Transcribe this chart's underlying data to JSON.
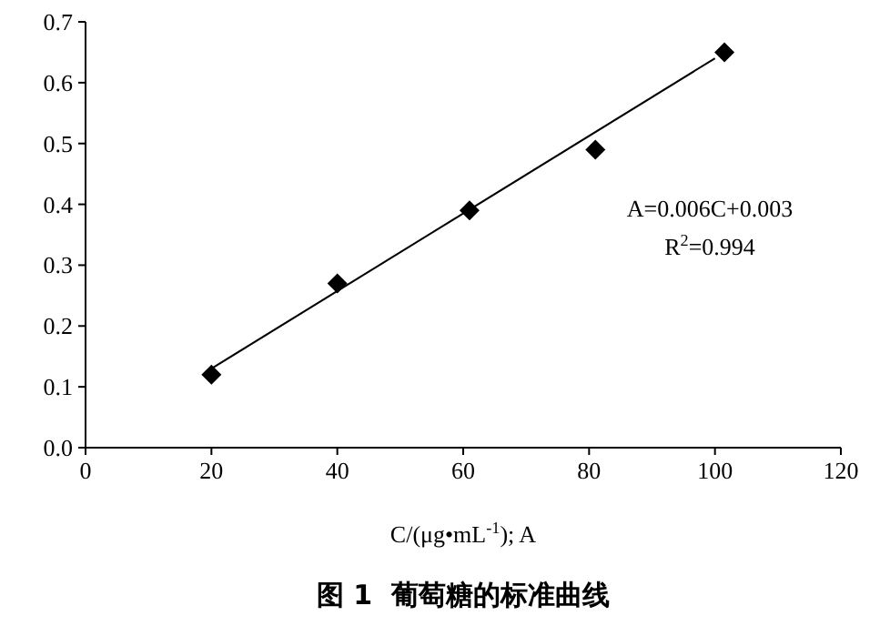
{
  "chart_data": {
    "type": "scatter",
    "title": "图 1  葡萄糖的标准曲线",
    "xlabel": "C/(μg•mL$^{-1}$);  A",
    "x": [
      20,
      40,
      61,
      81,
      101.5
    ],
    "series": [
      {
        "color": "#000000",
        "marker": "diamond",
        "values": [
          0.12,
          0.27,
          0.39,
          0.49,
          0.65
        ]
      },
      {
        "type": "line",
        "color": "#000000",
        "x": [
          20,
          100
        ],
        "values": [
          0.13,
          0.64
        ],
        "line_style": "solid",
        "marker": "none"
      }
    ],
    "annotations": [
      {
        "text": "A=0.006C+0.003"
      },
      {
        "text": "R$^{2}$=0.994"
      }
    ],
    "xlim": [
      0,
      120
    ],
    "xticks": [
      0,
      20,
      40,
      60,
      80,
      100,
      120
    ],
    "ylim": [
      0,
      0.7
    ],
    "yticks": [
      {
        "value": 0,
        "label": "0.0"
      },
      0.1,
      0.2,
      0.3,
      0.4,
      0.5,
      0.6,
      0.7
    ],
    "grid": false
  }
}
